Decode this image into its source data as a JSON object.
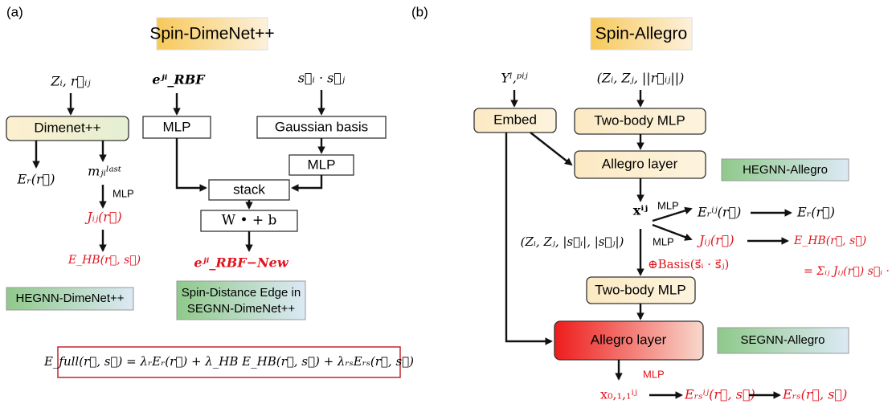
{
  "panel_a": {
    "label": "(a)",
    "title": "Spin-DimeNet++",
    "input_zr": "Zᵢ, r⃗ᵢⱼ",
    "dimenet": "Dimenet++",
    "er": "Eᵣ(r⃗)",
    "m_last": "mⱼᵢˡᵃˢᵗ",
    "mlp_small": "MLP",
    "jij": "Jᵢⱼ(r⃗)",
    "ehb": "E_HB(r⃗, s⃗)",
    "hegnn": "HEGNN-DimeNet++",
    "erbf": "eʲⁱ_RBF",
    "mlp1": "MLP",
    "sisj": "s⃗ᵢ · s⃗ⱼ",
    "gauss": "Gaussian basis",
    "mlp2": "MLP",
    "stack": "stack",
    "wb": "W • + b",
    "erbf_new": "eʲⁱ_RBF−New",
    "segnn": [
      "Spin-Distance Edge in",
      "SEGNN-DimeNet++"
    ],
    "formula": "E_full(r⃗, s⃗) = λᵣEᵣ(r⃗) + λ_HB E_HB(r⃗, s⃗) + λᵣₛEᵣₛ(r⃗, s⃗)"
  },
  "panel_b": {
    "label": "(b)",
    "title": "Spin-Allegro",
    "ylp": "Yˡ,ᵖⁱʲ",
    "zzr": "(Zᵢ, Zⱼ, ||r⃗ᵢⱼ||)",
    "embed": "Embed",
    "twobody1": "Two-body MLP",
    "allegro1": "Allegro layer",
    "hegnn": "HEGNN-Allegro",
    "xij": "xⁱʲ",
    "mlp_a": "MLP",
    "mlp_b": "MLP",
    "erij": "Eᵣⁱʲ(r⃗)",
    "er": "Eᵣ(r⃗)",
    "jij": "Jᵢⱼ(r⃗)",
    "ehb": "E_HB(r⃗, s⃗)",
    "sum": "= Σᵢⱼ Jᵢⱼ(r⃗) s⃗ᵢ · s⃗ⱼ",
    "zzs": "(Zᵢ, Zⱼ, |s⃗ᵢ|, |s⃗ⱼ|)",
    "basis": "⊕Basis(s⃗ᵢ · s⃗ⱼ)",
    "twobody2": "Two-body MLP",
    "allegro2": "Allegro layer",
    "segnn": "SEGNN-Allegro",
    "mlp_c": "MLP",
    "x011": "x₀,₁,₁ⁱʲ",
    "ersij": "Eᵣₛⁱʲ(r⃗, s⃗)",
    "ers": "Eᵣₛ(r⃗, s⃗)"
  }
}
